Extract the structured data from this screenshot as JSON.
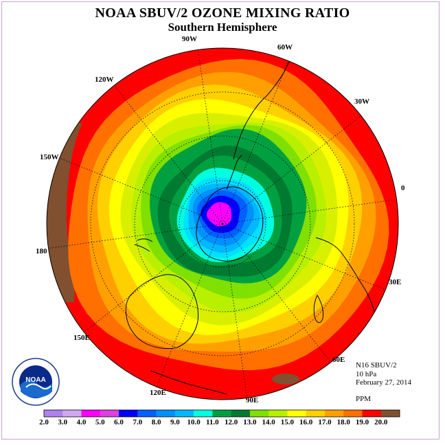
{
  "title": "NOAA SBUV/2 OZONE MIXING RATIO",
  "subtitle": "Southern Hemisphere",
  "longitude_labels": {
    "w90": "90W",
    "w60": "60W",
    "w120": "120W",
    "w30": "30W",
    "w150": "150W",
    "zero": "0",
    "e180": "180",
    "e30": "30E",
    "e150": "150E",
    "e60": "60E",
    "e120": "120E",
    "e90": "90E"
  },
  "info": {
    "instrument": "N16 SBUV/2",
    "level": "10 hPa",
    "date": "February 27, 2014",
    "units": "PPM"
  },
  "logo": {
    "text": "NOAA"
  },
  "colorbar": {
    "labels": [
      "2.0",
      "3.0",
      "4.0",
      "5.0",
      "6.0",
      "7.0",
      "8.0",
      "9.0",
      "10.0",
      "11.0",
      "12.0",
      "13.0",
      "14.0",
      "15.0",
      "16.0",
      "17.0",
      "18.0",
      "19.0",
      "20.0"
    ],
    "colors": [
      "#b080f0",
      "#d0a8f0",
      "#ff00ff",
      "#e040e0",
      "#0000ff",
      "#0060ff",
      "#0090ff",
      "#00b8ff",
      "#00ffe0",
      "#00a040",
      "#007a30",
      "#80e000",
      "#b8f000",
      "#ffff00",
      "#ffd000",
      "#ffa000",
      "#ff7000",
      "#ff0000",
      "#805030"
    ]
  },
  "map_fields": {
    "contour_colors_outer_to_inner": [
      "#ff0000",
      "#ff7000",
      "#ffa000",
      "#ffd000",
      "#ffff00",
      "#d8f000",
      "#b8f000",
      "#80e000",
      "#00a040",
      "#007a30",
      "#00a040",
      "#00ffe0",
      "#00e0ff",
      "#00b8ff",
      "#0090ff",
      "#0060ff",
      "#0000ff",
      "#ff00ff"
    ],
    "brown_patch_color": "#805030"
  }
}
